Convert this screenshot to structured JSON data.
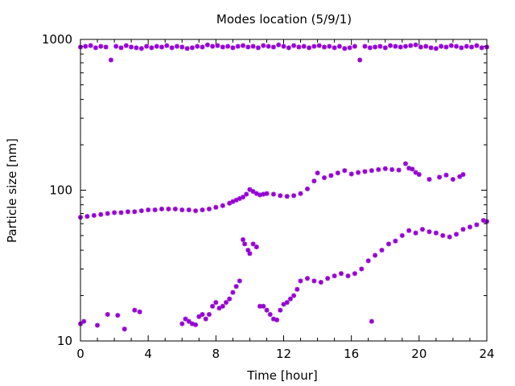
{
  "chart_data": {
    "type": "scatter",
    "title": "Modes location (5/9/1)",
    "xlabel": "Time [hour]",
    "ylabel": "Particle size [nm]",
    "xlim": [
      0,
      24
    ],
    "ylim": [
      10,
      1000
    ],
    "y_scale": "log",
    "grid": false,
    "legend": "none",
    "x_ticks": [
      0,
      4,
      8,
      12,
      16,
      20,
      24
    ],
    "y_ticks": [
      10,
      100,
      1000
    ],
    "x_tick_labels": [
      "0",
      "4",
      "8",
      "12",
      "16",
      "20",
      "24"
    ],
    "y_tick_labels": [
      "10",
      "100",
      "1000"
    ],
    "marker": "star",
    "color": "#9400d3",
    "series": [
      {
        "x": [
          0.0,
          0.4,
          0.8,
          1.2,
          1.6,
          2.0,
          2.4,
          2.8,
          3.2,
          3.6,
          4.0,
          4.4,
          4.8,
          5.2,
          5.6,
          6.0,
          6.4,
          6.8,
          7.2,
          7.6,
          8.0,
          8.4,
          8.8,
          9.0,
          9.2,
          9.4,
          9.6,
          9.8,
          10.0,
          10.2,
          10.4,
          10.6,
          10.8,
          11.0,
          11.4,
          11.8,
          12.2,
          12.6,
          13.0,
          13.4,
          13.8,
          14.0,
          14.4,
          14.8,
          15.2,
          15.6,
          16.0,
          16.4,
          16.8,
          17.2,
          17.6,
          18.0,
          18.4,
          18.8,
          19.2,
          19.4,
          19.6,
          19.8,
          20.0,
          20.6,
          21.2,
          21.6,
          22.0,
          22.4,
          22.6
        ],
        "y": [
          66,
          67,
          68,
          69,
          70,
          71,
          71,
          72,
          72,
          73,
          74,
          74,
          75,
          75,
          75,
          74,
          74,
          73,
          74,
          75,
          77,
          79,
          82,
          84,
          86,
          88,
          90,
          94,
          101,
          98,
          95,
          93,
          94,
          95,
          94,
          92,
          91,
          92,
          95,
          102,
          115,
          130,
          121,
          125,
          130,
          135,
          128,
          131,
          133,
          135,
          137,
          139,
          137,
          136,
          150,
          140,
          138,
          131,
          127,
          118,
          122,
          126,
          118,
          123,
          127
        ]
      },
      {
        "x": [
          0.0,
          0.3,
          0.6,
          0.9,
          1.2,
          1.5,
          1.8,
          2.1,
          2.4,
          2.7,
          3.0,
          3.3,
          3.6,
          3.9,
          4.2,
          4.5,
          4.8,
          5.1,
          5.4,
          5.7,
          6.0,
          6.3,
          6.6,
          6.9,
          7.2,
          7.5,
          7.8,
          8.1,
          8.4,
          8.7,
          9.0,
          9.3,
          9.6,
          9.9,
          10.2,
          10.5,
          10.8,
          11.1,
          11.4,
          11.7,
          12.0,
          12.3,
          12.6,
          12.9,
          13.2,
          13.5,
          13.8,
          14.1,
          14.4,
          14.7,
          15.0,
          15.3,
          15.6,
          15.9,
          16.2,
          16.5,
          16.8,
          17.1,
          17.4,
          17.7,
          18.0,
          18.3,
          18.6,
          18.9,
          19.2,
          19.5,
          19.8,
          20.1,
          20.4,
          20.7,
          21.0,
          21.3,
          21.6,
          21.9,
          22.2,
          22.5,
          22.8,
          23.1,
          23.4,
          23.7,
          24.0
        ],
        "y": [
          890,
          900,
          910,
          880,
          900,
          890,
          730,
          900,
          880,
          910,
          890,
          880,
          870,
          900,
          880,
          900,
          890,
          910,
          880,
          900,
          890,
          870,
          880,
          900,
          890,
          920,
          900,
          910,
          890,
          900,
          880,
          900,
          910,
          890,
          900,
          880,
          910,
          900,
          890,
          920,
          900,
          880,
          910,
          890,
          900,
          880,
          900,
          910,
          890,
          900,
          880,
          900,
          870,
          880,
          900,
          730,
          900,
          880,
          890,
          900,
          880,
          910,
          900,
          890,
          900,
          910,
          920,
          890,
          900,
          880,
          870,
          900,
          890,
          910,
          900,
          880,
          900,
          890,
          910,
          880,
          890
        ]
      },
      {
        "x": [
          0.0,
          0.2,
          1.0,
          1.6,
          2.2,
          2.6,
          3.2,
          3.5,
          6.0,
          6.2,
          6.4,
          6.6,
          6.8,
          7.0,
          7.2,
          7.4,
          7.6,
          7.8,
          8.0,
          8.2,
          8.4,
          8.6,
          8.8,
          9.0,
          9.2,
          9.4,
          9.6,
          9.7,
          9.9,
          10.0,
          10.2,
          10.4,
          10.6,
          10.8,
          11.0,
          11.2,
          11.4,
          11.6,
          11.8,
          12.0,
          12.2,
          12.4,
          12.6,
          12.8,
          13.0,
          13.4,
          13.8,
          14.2,
          14.6,
          15.0,
          15.4,
          15.8,
          16.2,
          16.6,
          17.0,
          17.2,
          17.4,
          17.8,
          18.2,
          18.6,
          19.0,
          19.4,
          19.8,
          20.2,
          20.6,
          21.0,
          21.4,
          21.8,
          22.2,
          22.6,
          23.0,
          23.4,
          23.8,
          24.0
        ],
        "y": [
          13,
          13.5,
          12.7,
          15,
          14.8,
          12,
          16,
          15.6,
          13,
          14,
          13.5,
          13,
          12.8,
          14.5,
          15,
          14,
          15,
          17,
          18,
          16.5,
          17,
          18,
          19,
          21,
          23,
          25,
          47,
          44,
          40,
          38,
          44,
          42,
          17,
          17,
          16,
          15,
          14,
          13.8,
          16,
          17.5,
          18,
          19,
          20,
          22,
          25,
          26,
          25,
          24.5,
          26,
          27,
          28,
          27,
          28,
          30,
          34,
          13.5,
          37,
          40,
          44,
          46,
          50,
          54,
          52,
          55,
          53,
          52,
          50,
          49,
          51,
          55,
          57,
          59,
          63,
          62
        ]
      }
    ]
  }
}
